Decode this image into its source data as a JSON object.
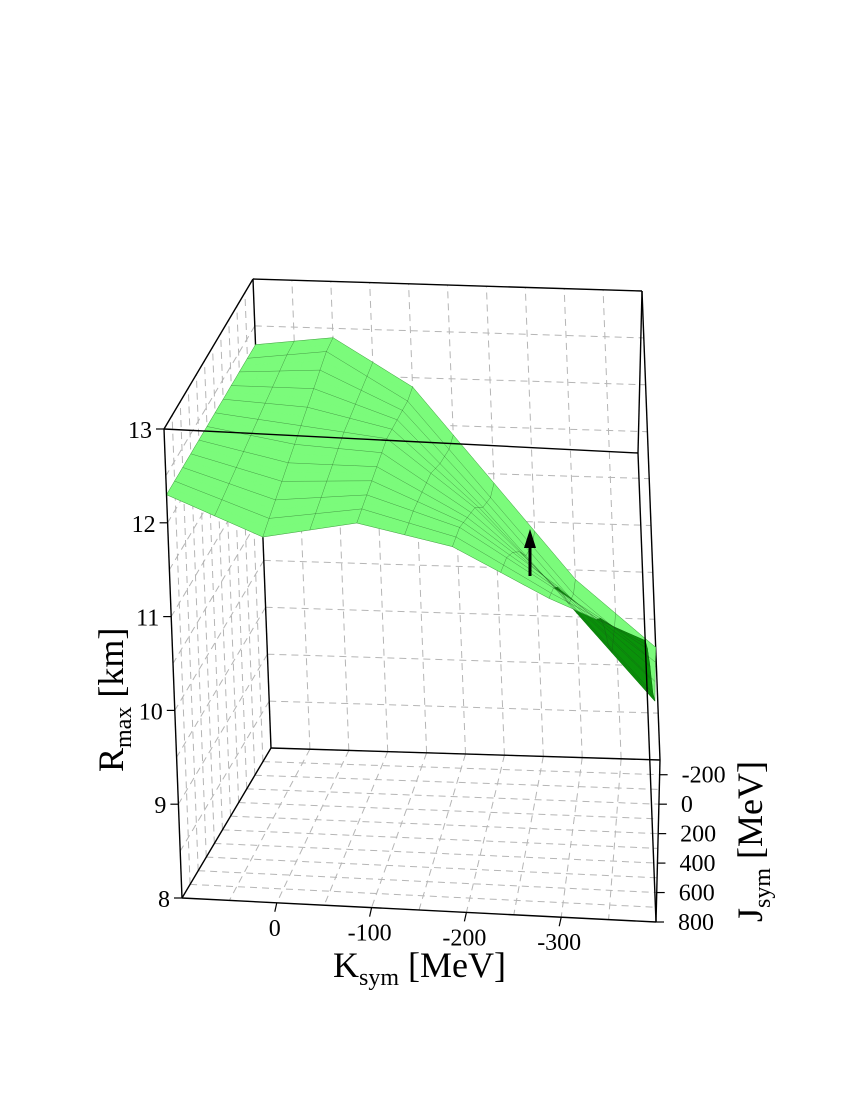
{
  "chart_data": {
    "type": "surface3d",
    "zlabel": {
      "main": "R",
      "sub": "max",
      "unit": " [km]"
    },
    "xlabel": {
      "main": "K",
      "sub": "sym",
      "unit": " [MeV]"
    },
    "ylabel": {
      "main": "J",
      "sub": "sym",
      "unit": " [MeV]"
    },
    "z_ticks": [
      "8",
      "9",
      "10",
      "11",
      "12",
      "13"
    ],
    "x_ticks": [
      "0",
      "-100",
      "-200",
      "-300"
    ],
    "y_ticks": [
      "-200",
      "0",
      "200",
      "400",
      "600",
      "800"
    ],
    "z_range": [
      8,
      13
    ],
    "x_range": [
      100,
      -400
    ],
    "y_range": [
      -300,
      800
    ],
    "grid": true,
    "colors": {
      "top_surface": "#7bfb7b",
      "bottom_surface": "#0a920a",
      "mesh": "#1c4d1c",
      "arrow": "#000000"
    },
    "series": [
      {
        "K": -400,
        "J": [
          -300,
          -200,
          0,
          200,
          400,
          600,
          800
        ],
        "R": [
          9.2,
          9.2,
          9.1,
          9.5,
          10.1,
          10.6,
          11.0
        ]
      },
      {
        "K": -300,
        "J": [
          -300,
          -200,
          0,
          200,
          400,
          600,
          800
        ],
        "R": [
          9.9,
          9.9,
          10.1,
          10.5,
          10.9,
          11.2,
          11.4
        ]
      },
      {
        "K": -200,
        "J": [
          -300,
          -200,
          0,
          200,
          400,
          600,
          800
        ],
        "R": [
          10.9,
          10.9,
          11.1,
          11.4,
          11.6,
          11.8,
          11.9
        ]
      },
      {
        "K": -100,
        "J": [
          -300,
          -200,
          0,
          200,
          400,
          600,
          800
        ],
        "R": [
          11.9,
          11.9,
          12.0,
          12.1,
          12.1,
          12.1,
          12.1
        ]
      },
      {
        "K": 0,
        "J": [
          -300,
          -200,
          0,
          200,
          400,
          600,
          800
        ],
        "R": [
          12.4,
          12.4,
          12.3,
          12.2,
          12.1,
          12.0,
          11.9
        ]
      },
      {
        "K": 100,
        "J": [
          -300,
          -200,
          0,
          200,
          400,
          600,
          800
        ],
        "R": [
          12.3,
          12.3,
          12.3,
          12.3,
          12.3,
          12.3,
          12.3
        ]
      }
    ]
  }
}
